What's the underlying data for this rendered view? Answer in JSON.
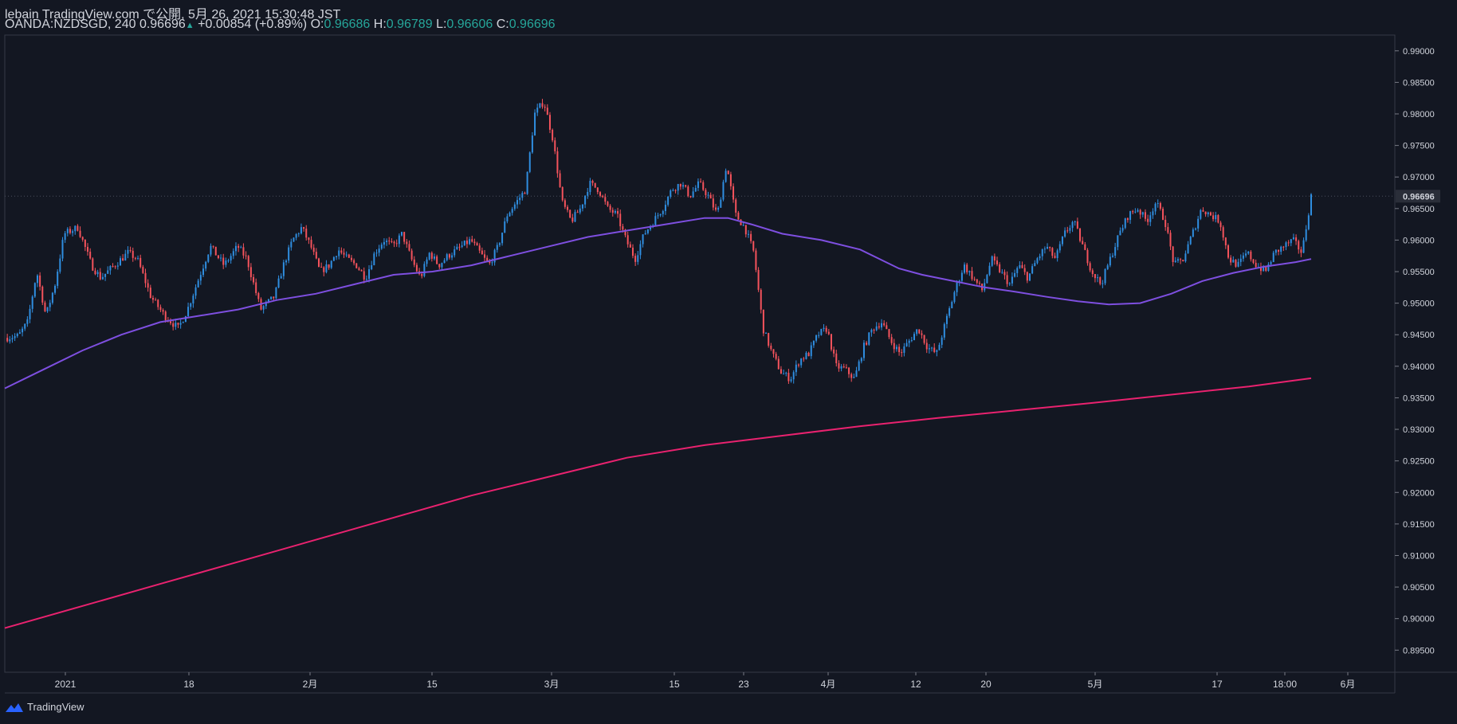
{
  "header": {
    "line1": "lebain TradingView.com で公開, 5月 26, 2021 15:30:48 JST",
    "symbol": "OANDA:NZDSGD, 240",
    "price": "0.96696",
    "arrow": "▲",
    "change": "+0.00854 (+0.89%)",
    "o_label": "O:",
    "o": "0.96686",
    "h_label": "H:",
    "h": "0.96789",
    "l_label": "L:",
    "l": "0.96606",
    "c_label": "C:",
    "c": "0.96696"
  },
  "footer": {
    "brand": "TradingView"
  },
  "colors": {
    "background": "#131722",
    "up": "#2f8ee0",
    "down": "#f5535c",
    "ma_fast": "#7e4fe0",
    "ma_slow": "#e9226f",
    "last_price_bg": "#2a2e39"
  },
  "chart_data": {
    "type": "candlestick",
    "ylim": [
      0.8915,
      0.9925
    ],
    "y_ticks": [
      "0.99000",
      "0.98500",
      "0.98000",
      "0.97500",
      "0.97000",
      "0.96500",
      "0.96000",
      "0.95500",
      "0.95000",
      "0.94500",
      "0.94000",
      "0.93500",
      "0.93000",
      "0.92500",
      "0.92000",
      "0.91500",
      "0.91000",
      "0.90500",
      "0.90000",
      "0.89500"
    ],
    "last_price_label": "0.96696",
    "x_ticks": [
      {
        "label": "2021",
        "pos": 0.0
      },
      {
        "label": "18",
        "pos": 0.1
      },
      {
        "label": "2月",
        "pos": 0.2
      },
      {
        "label": "15",
        "pos": 0.3
      },
      {
        "label": "3月",
        "pos": 0.4
      },
      {
        "label": "15",
        "pos": 0.5
      },
      {
        "label": "23",
        "pos": 0.557
      },
      {
        "label": "4月",
        "pos": 0.625
      },
      {
        "label": "12",
        "pos": 0.697
      },
      {
        "label": "20",
        "pos": 0.754
      },
      {
        "label": "5月",
        "pos": 0.84
      },
      {
        "label": "17",
        "pos": 0.937
      },
      {
        "label": "18:00",
        "pos": 0.987
      },
      {
        "label": "6月",
        "pos": 1.093
      }
    ],
    "close_path": [
      [
        0.0,
        0.9445
      ],
      [
        0.03,
        0.9448
      ],
      [
        0.05,
        0.947
      ],
      [
        0.07,
        0.955
      ],
      [
        0.09,
        0.948
      ],
      [
        0.11,
        0.953
      ],
      [
        0.13,
        0.961
      ],
      [
        0.16,
        0.962
      ],
      [
        0.19,
        0.956
      ],
      [
        0.21,
        0.954
      ],
      [
        0.24,
        0.956
      ],
      [
        0.27,
        0.958
      ],
      [
        0.29,
        0.957
      ],
      [
        0.32,
        0.951
      ],
      [
        0.35,
        0.948
      ],
      [
        0.38,
        0.946
      ],
      [
        0.4,
        0.949
      ],
      [
        0.43,
        0.955
      ],
      [
        0.45,
        0.959
      ],
      [
        0.48,
        0.956
      ],
      [
        0.51,
        0.959
      ],
      [
        0.53,
        0.957
      ],
      [
        0.56,
        0.949
      ],
      [
        0.59,
        0.951
      ],
      [
        0.61,
        0.956
      ],
      [
        0.63,
        0.96
      ],
      [
        0.65,
        0.962
      ],
      [
        0.67,
        0.959
      ],
      [
        0.69,
        0.955
      ],
      [
        0.71,
        0.956
      ],
      [
        0.73,
        0.9585
      ],
      [
        0.75,
        0.957
      ],
      [
        0.77,
        0.956
      ],
      [
        0.79,
        0.954
      ],
      [
        0.81,
        0.958
      ],
      [
        0.83,
        0.96
      ],
      [
        0.85,
        0.959
      ],
      [
        0.87,
        0.961
      ],
      [
        0.89,
        0.957
      ],
      [
        0.91,
        0.954
      ],
      [
        0.93,
        0.958
      ],
      [
        0.95,
        0.956
      ],
      [
        0.97,
        0.9575
      ],
      [
        1.0,
        0.959
      ],
      [
        1.02,
        0.96
      ],
      [
        1.04,
        0.958
      ],
      [
        1.06,
        0.956
      ],
      [
        1.08,
        0.959
      ],
      [
        1.1,
        0.964
      ],
      [
        1.12,
        0.966
      ],
      [
        1.14,
        0.968
      ],
      [
        1.16,
        0.98
      ],
      [
        1.18,
        0.982
      ],
      [
        1.2,
        0.976
      ],
      [
        1.22,
        0.966
      ],
      [
        1.24,
        0.963
      ],
      [
        1.26,
        0.965
      ],
      [
        1.28,
        0.969
      ],
      [
        1.3,
        0.968
      ],
      [
        1.32,
        0.965
      ],
      [
        1.34,
        0.964
      ],
      [
        1.36,
        0.96
      ],
      [
        1.38,
        0.957
      ],
      [
        1.4,
        0.961
      ],
      [
        1.42,
        0.963
      ],
      [
        1.44,
        0.965
      ],
      [
        1.46,
        0.968
      ],
      [
        1.48,
        0.969
      ],
      [
        1.5,
        0.967
      ],
      [
        1.52,
        0.969
      ],
      [
        1.54,
        0.967
      ],
      [
        1.56,
        0.964
      ],
      [
        1.58,
        0.972
      ],
      [
        1.6,
        0.964
      ],
      [
        1.62,
        0.962
      ],
      [
        1.64,
        0.958
      ],
      [
        1.66,
        0.946
      ],
      [
        1.68,
        0.942
      ],
      [
        1.7,
        0.939
      ],
      [
        1.72,
        0.938
      ],
      [
        1.74,
        0.941
      ],
      [
        1.76,
        0.942
      ],
      [
        1.78,
        0.945
      ],
      [
        1.8,
        0.946
      ],
      [
        1.82,
        0.94
      ],
      [
        1.84,
        0.9395
      ],
      [
        1.86,
        0.938
      ],
      [
        1.88,
        0.943
      ],
      [
        1.9,
        0.946
      ],
      [
        1.92,
        0.947
      ],
      [
        1.94,
        0.944
      ],
      [
        1.96,
        0.942
      ],
      [
        1.98,
        0.944
      ],
      [
        2.0,
        0.946
      ],
      [
        2.02,
        0.943
      ],
      [
        2.04,
        0.942
      ],
      [
        2.06,
        0.947
      ],
      [
        2.08,
        0.952
      ],
      [
        2.1,
        0.956
      ],
      [
        2.12,
        0.954
      ],
      [
        2.14,
        0.952
      ],
      [
        2.16,
        0.957
      ],
      [
        2.18,
        0.955
      ],
      [
        2.2,
        0.953
      ],
      [
        2.22,
        0.956
      ],
      [
        2.24,
        0.954
      ],
      [
        2.26,
        0.957
      ],
      [
        2.28,
        0.959
      ],
      [
        2.3,
        0.957
      ],
      [
        2.32,
        0.961
      ],
      [
        2.34,
        0.963
      ],
      [
        2.36,
        0.959
      ],
      [
        2.38,
        0.955
      ],
      [
        2.4,
        0.953
      ],
      [
        2.42,
        0.957
      ],
      [
        2.44,
        0.961
      ],
      [
        2.46,
        0.964
      ],
      [
        2.48,
        0.965
      ],
      [
        2.5,
        0.963
      ],
      [
        2.52,
        0.966
      ],
      [
        2.54,
        0.963
      ],
      [
        2.56,
        0.956
      ],
      [
        2.58,
        0.957
      ],
      [
        2.6,
        0.961
      ],
      [
        2.62,
        0.965
      ],
      [
        2.64,
        0.964
      ],
      [
        2.66,
        0.963
      ],
      [
        2.68,
        0.957
      ],
      [
        2.7,
        0.956
      ],
      [
        2.72,
        0.958
      ],
      [
        2.74,
        0.956
      ],
      [
        2.76,
        0.955
      ],
      [
        2.78,
        0.958
      ],
      [
        2.8,
        0.959
      ],
      [
        2.82,
        0.96
      ],
      [
        2.84,
        0.958
      ],
      [
        2.86,
        0.967
      ]
    ],
    "ma_fast": [
      [
        0.0,
        0.9365
      ],
      [
        0.05,
        0.9395
      ],
      [
        0.1,
        0.9425
      ],
      [
        0.15,
        0.945
      ],
      [
        0.2,
        0.947
      ],
      [
        0.25,
        0.948
      ],
      [
        0.3,
        0.949
      ],
      [
        0.35,
        0.9505
      ],
      [
        0.4,
        0.9515
      ],
      [
        0.45,
        0.953
      ],
      [
        0.5,
        0.9545
      ],
      [
        0.55,
        0.955
      ],
      [
        0.6,
        0.956
      ],
      [
        0.65,
        0.9575
      ],
      [
        0.7,
        0.959
      ],
      [
        0.75,
        0.9605
      ],
      [
        0.8,
        0.9615
      ],
      [
        0.85,
        0.9625
      ],
      [
        0.9,
        0.9635
      ],
      [
        0.93,
        0.9635
      ],
      [
        0.96,
        0.9625
      ],
      [
        1.0,
        0.961
      ],
      [
        1.05,
        0.96
      ],
      [
        1.1,
        0.9585
      ],
      [
        1.15,
        0.9555
      ],
      [
        1.18,
        0.9545
      ],
      [
        1.22,
        0.9535
      ],
      [
        1.26,
        0.9525
      ],
      [
        1.3,
        0.9518
      ],
      [
        1.34,
        0.951
      ],
      [
        1.38,
        0.9503
      ],
      [
        1.42,
        0.9498
      ],
      [
        1.46,
        0.95
      ],
      [
        1.5,
        0.9515
      ],
      [
        1.54,
        0.9535
      ],
      [
        1.58,
        0.9548
      ],
      [
        1.62,
        0.9558
      ],
      [
        1.66,
        0.9565
      ],
      [
        1.68,
        0.957
      ]
    ],
    "ma_slow": [
      [
        0.0,
        0.8985
      ],
      [
        0.1,
        0.902
      ],
      [
        0.2,
        0.9055
      ],
      [
        0.3,
        0.909
      ],
      [
        0.4,
        0.9125
      ],
      [
        0.5,
        0.916
      ],
      [
        0.6,
        0.9195
      ],
      [
        0.7,
        0.9225
      ],
      [
        0.8,
        0.9255
      ],
      [
        0.9,
        0.9275
      ],
      [
        1.0,
        0.929
      ],
      [
        1.1,
        0.9305
      ],
      [
        1.2,
        0.9318
      ],
      [
        1.3,
        0.933
      ],
      [
        1.4,
        0.9342
      ],
      [
        1.5,
        0.9355
      ],
      [
        1.6,
        0.9368
      ],
      [
        1.68,
        0.9381
      ]
    ],
    "title": "",
    "xlabel": "",
    "ylabel": ""
  }
}
